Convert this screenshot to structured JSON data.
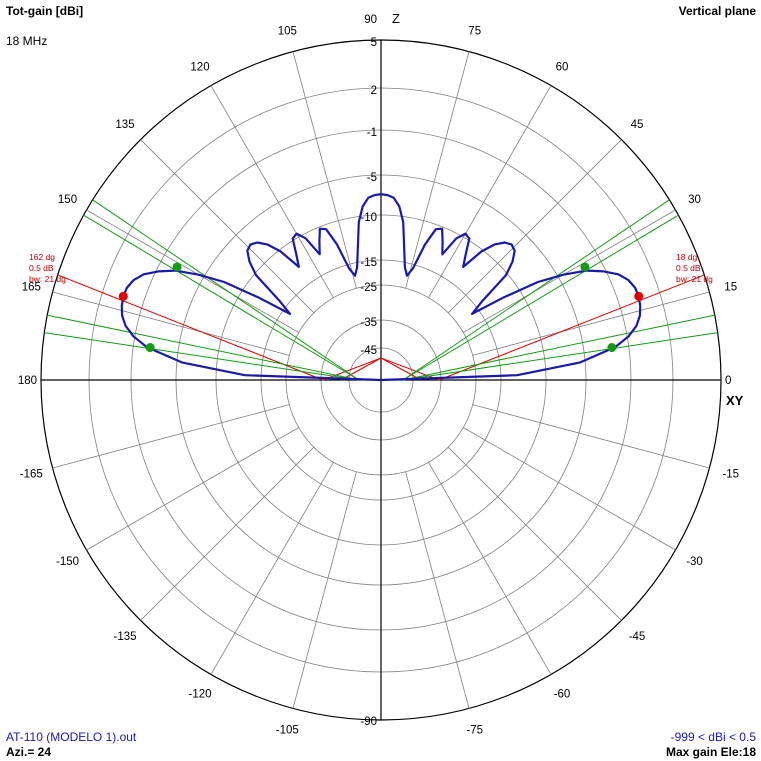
{
  "header": {
    "title": "Tot-gain [dBi]",
    "frequency": "18 MHz",
    "plane": "Vertical plane"
  },
  "footer": {
    "file": "AT-110 (MODELO 1).out",
    "azimuth": "Azi.= 24",
    "range": "-999 < dBi < 0.5",
    "max_gain": "Max gain Ele:18"
  },
  "colors": {
    "pattern": "#1a1aa8",
    "main_beam": "#e00000",
    "beamwidth": "#159a15",
    "grid": "#808080",
    "axis": "#000000",
    "red_text": "#c00000"
  },
  "chart_data": {
    "type": "polar",
    "title": "Tot-gain [dBi]",
    "angle_unit": "deg",
    "angle_ticks": [
      0,
      15,
      30,
      45,
      60,
      75,
      90,
      105,
      120,
      135,
      150,
      165,
      180,
      -165,
      -150,
      -135,
      -120,
      -105,
      -90,
      -75,
      -60,
      -45,
      -30,
      -15
    ],
    "radial_ticks": [
      5,
      2,
      -1,
      -5,
      -10,
      -15,
      -25,
      -35,
      -45
    ],
    "radial_range_dbi": [
      -45,
      5
    ],
    "axis_labels": {
      "vertical": "Z",
      "horizontal": "XY"
    },
    "pattern": {
      "angles": [
        0,
        2,
        5,
        8,
        10,
        12,
        14,
        16,
        18,
        20,
        22,
        24,
        26,
        28,
        30,
        32,
        34,
        36,
        38,
        40,
        42,
        44,
        46,
        48,
        50,
        52,
        54,
        56,
        58,
        60,
        62,
        64,
        66,
        68,
        70,
        72,
        74,
        76,
        78,
        80,
        82,
        84,
        86,
        88,
        90,
        92,
        94,
        96,
        98,
        100,
        102,
        104,
        106,
        108,
        110,
        112,
        114,
        116,
        118,
        120,
        122,
        124,
        126,
        128,
        130,
        132,
        134,
        136,
        138,
        140,
        142,
        144,
        146,
        148,
        150,
        152,
        154,
        156,
        158,
        160,
        162,
        164,
        166,
        168,
        170,
        172,
        175,
        178,
        180
      ],
      "gain_dbi": [
        -45,
        -13.2,
        -5.7,
        -2.2,
        -0.9,
        -0.2,
        0.2,
        0.4,
        0.5,
        0.45,
        0.2,
        -0.3,
        -1.2,
        -2.5,
        -4.5,
        -7.5,
        -12,
        -18,
        -14,
        -10.2,
        -8.5,
        -7.4,
        -7.1,
        -7.5,
        -8.5,
        -10.2,
        -12.8,
        -11.5,
        -9.8,
        -9.5,
        -10.5,
        -12.8,
        -11.5,
        -10.2,
        -10.5,
        -12.5,
        -16.5,
        -20,
        -17,
        -13.5,
        -10.6,
        -8.8,
        -7.8,
        -7.5,
        -7.4,
        -7.5,
        -7.8,
        -8.8,
        -10.6,
        -13.5,
        -17,
        -20,
        -16.5,
        -12.5,
        -10.5,
        -10.2,
        -11.5,
        -12.8,
        -10.5,
        -9.5,
        -9.8,
        -11.5,
        -12.8,
        -10.2,
        -8.5,
        -7.5,
        -7.1,
        -7.4,
        -8.5,
        -10.2,
        -14,
        -18,
        -12,
        -7.5,
        -4.5,
        -2.5,
        -1.2,
        -0.3,
        0.2,
        0.45,
        0.5,
        0.4,
        0.2,
        -0.2,
        -0.9,
        -2.2,
        -5.7,
        -13.2,
        -45
      ]
    },
    "annotations": {
      "main_lobe_right": {
        "angle": 18,
        "gain": 0.5,
        "labels": [
          "18 dg",
          "0.5 dB",
          "bw: 21 dg"
        ]
      },
      "main_lobe_left": {
        "angle": 162,
        "gain": 0.5,
        "labels": [
          "162 dg",
          "0.5 dB",
          "bw: 21 dg"
        ]
      },
      "beamwidth_points": [
        {
          "angle": 8,
          "gain": -2.5
        },
        {
          "angle": 29,
          "gain": -2.5
        },
        {
          "angle": 151,
          "gain": -2.5
        },
        {
          "angle": 172,
          "gain": -2.5
        }
      ]
    }
  }
}
